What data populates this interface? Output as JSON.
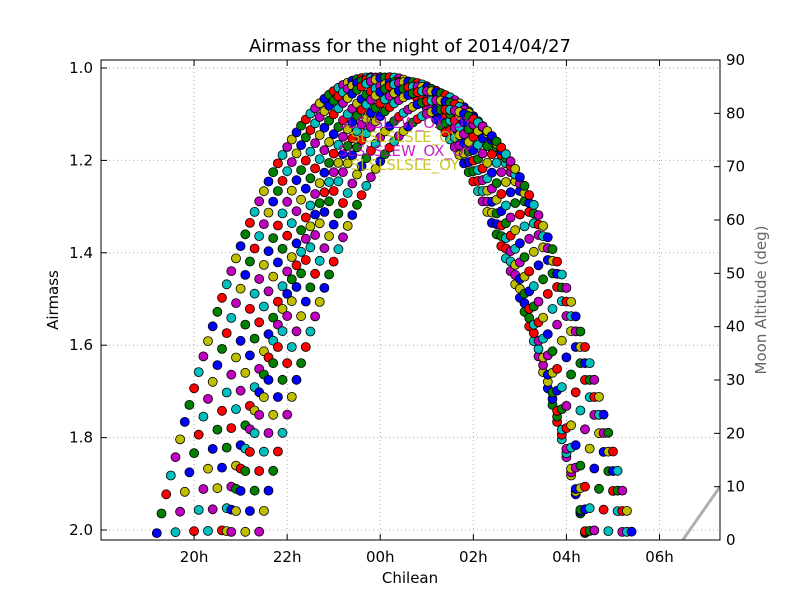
{
  "chart_data": {
    "type": "scatter",
    "title": "Airmass for the night of 2014/04/27",
    "xlabel": "Chilean",
    "ylabel": "Airmass",
    "y2label": "Moon Altitude (deg)",
    "x_ticks": [
      "20h",
      "22h",
      "00h",
      "02h",
      "04h",
      "06h"
    ],
    "x_tick_hours": [
      -4,
      -2,
      0,
      2,
      4,
      6
    ],
    "xlim_hours": [
      -6.0,
      7.3
    ],
    "y_ticks": [
      "1.0",
      "1.2",
      "1.4",
      "1.6",
      "1.8",
      "2.0"
    ],
    "ylim": [
      1.02,
      0.985
    ],
    "y_axis_inverted": true,
    "y2_ticks": [
      "0",
      "10",
      "20",
      "30",
      "40",
      "50",
      "60",
      "70",
      "80",
      "90"
    ],
    "y2lim": [
      0,
      90
    ],
    "grid": true,
    "target_labels": [
      "SLSLSLEW_OX_OY",
      "SLSLSLSLE_OY",
      "SLSLSLEW_OX_OY",
      "SLSLSLSLE_OY"
    ],
    "airmass_series_colors": [
      "#0000ff",
      "#008000",
      "#ff0000",
      "#00bfbf",
      "#bf00bf",
      "#bfbf00"
    ],
    "airmass_track_params": {
      "transit_hours": [
        -0.2,
        0.0,
        0.2,
        0.4,
        0.6,
        0.8,
        1.0,
        1.2,
        1.4
      ],
      "min_airmass": [
        1.02,
        1.02,
        1.02,
        1.03,
        1.03,
        1.04,
        1.05,
        1.07,
        1.09
      ],
      "half_width_hours_at_airmass_2": [
        4.7,
        4.5,
        4.3,
        4.2,
        4.1,
        4.2,
        4.3,
        4.2,
        4.1
      ],
      "sample_step_hours": 0.1
    },
    "moon": {
      "color": "#b0b0b0",
      "altitude_deg": [
        {
          "x": 6.5,
          "y": 0
        },
        {
          "x": 7.3,
          "y": 10
        }
      ]
    }
  }
}
